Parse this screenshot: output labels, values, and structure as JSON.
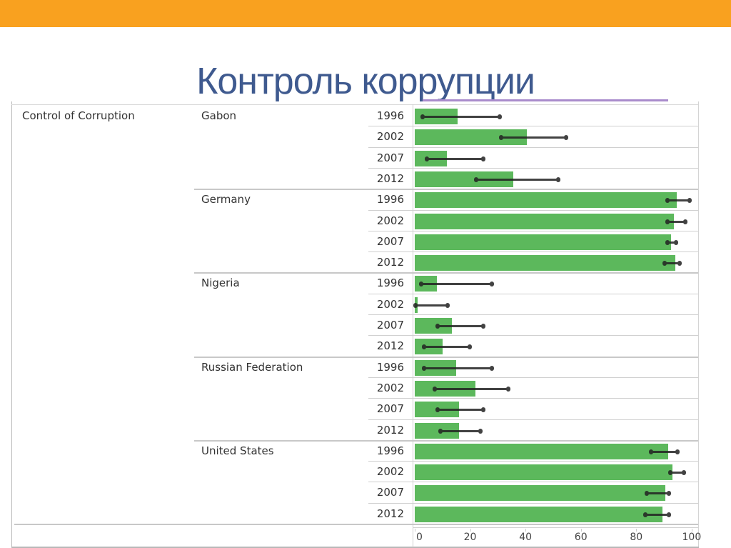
{
  "slide": {
    "title": "Контроль коррупции",
    "colors": {
      "top_bar": "#f9a11f",
      "title": "#3f5a8f",
      "bar": "#5cb85c",
      "error_bar": "#222222",
      "accent_line": "#a98bcc"
    }
  },
  "chart_data": {
    "type": "bar",
    "orientation": "horizontal",
    "title": "Контроль коррупции",
    "measure": "Control of Corruption",
    "xlabel": "",
    "ylabel": "",
    "xlim": [
      0,
      100
    ],
    "x_ticks": [
      0,
      20,
      40,
      60,
      80,
      100
    ],
    "grid": false,
    "legend": null,
    "groups": [
      {
        "country": "Gabon",
        "rows": [
          {
            "year": "1996",
            "value": 15.5,
            "err_low": 2.5,
            "err_high": 31
          },
          {
            "year": "2002",
            "value": 40.5,
            "err_low": 31,
            "err_high": 55
          },
          {
            "year": "2007",
            "value": 11.5,
            "err_low": 4,
            "err_high": 25
          },
          {
            "year": "2012",
            "value": 35.5,
            "err_low": 22,
            "err_high": 52
          }
        ]
      },
      {
        "country": "Germany",
        "rows": [
          {
            "year": "1996",
            "value": 94.5,
            "err_low": 91,
            "err_high": 99.5
          },
          {
            "year": "2002",
            "value": 93.5,
            "err_low": 91,
            "err_high": 98
          },
          {
            "year": "2007",
            "value": 92.5,
            "err_low": 91,
            "err_high": 94.5
          },
          {
            "year": "2012",
            "value": 94,
            "err_low": 90,
            "err_high": 96
          }
        ]
      },
      {
        "country": "Nigeria",
        "rows": [
          {
            "year": "1996",
            "value": 8,
            "err_low": 2,
            "err_high": 28
          },
          {
            "year": "2002",
            "value": 1,
            "err_low": 0,
            "err_high": 12
          },
          {
            "year": "2007",
            "value": 13.5,
            "err_low": 8,
            "err_high": 25
          },
          {
            "year": "2012",
            "value": 10,
            "err_low": 3,
            "err_high": 20
          }
        ]
      },
      {
        "country": "Russian Federation",
        "rows": [
          {
            "year": "1996",
            "value": 15,
            "err_low": 3,
            "err_high": 28
          },
          {
            "year": "2002",
            "value": 22,
            "err_low": 7,
            "err_high": 34
          },
          {
            "year": "2007",
            "value": 16,
            "err_low": 8,
            "err_high": 25
          },
          {
            "year": "2012",
            "value": 16,
            "err_low": 9,
            "err_high": 24
          }
        ]
      },
      {
        "country": "United States",
        "rows": [
          {
            "year": "1996",
            "value": 91.5,
            "err_low": 85,
            "err_high": 95
          },
          {
            "year": "2002",
            "value": 93,
            "err_low": 92,
            "err_high": 97.5
          },
          {
            "year": "2007",
            "value": 90.5,
            "err_low": 83.5,
            "err_high": 92
          },
          {
            "year": "2012",
            "value": 89.5,
            "err_low": 83,
            "err_high": 92
          }
        ]
      }
    ]
  }
}
